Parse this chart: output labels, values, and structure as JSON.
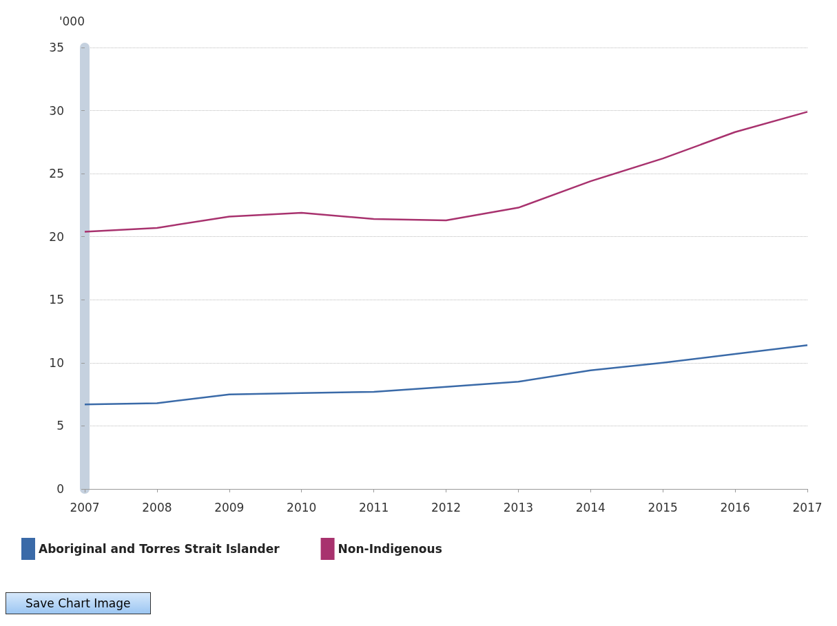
{
  "chart_data": {
    "type": "line",
    "ylabel": "'000",
    "categories": [
      "2007",
      "2008",
      "2009",
      "2010",
      "2011",
      "2012",
      "2013",
      "2014",
      "2015",
      "2016",
      "2017"
    ],
    "series": [
      {
        "name": "Aboriginal and Torres Strait Islander",
        "color": "#3a6aa8",
        "values": [
          6.7,
          6.8,
          7.5,
          7.6,
          7.7,
          8.1,
          8.5,
          9.4,
          10.0,
          10.7,
          11.4
        ]
      },
      {
        "name": "Non-Indigenous",
        "color": "#a8326e",
        "values": [
          20.4,
          20.7,
          21.6,
          21.9,
          21.4,
          21.3,
          22.3,
          24.4,
          26.2,
          28.3,
          29.9
        ]
      }
    ],
    "ylim": [
      0,
      35
    ],
    "yticks": [
      0,
      5,
      10,
      15,
      20,
      25,
      30,
      35
    ],
    "grid": "y",
    "legend": "bottom left",
    "marker": "none",
    "line_style": "solid",
    "annotations": [
      "Save Chart Image"
    ]
  }
}
